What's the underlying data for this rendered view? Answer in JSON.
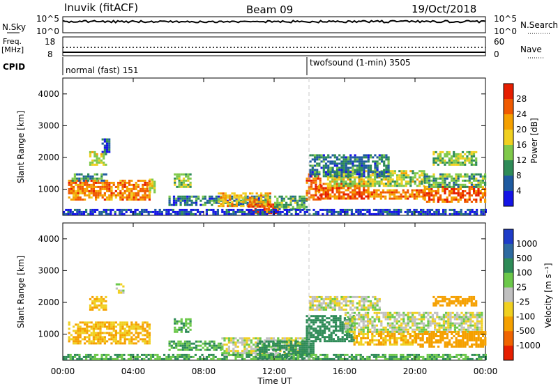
{
  "header": {
    "station": "Inuvik (fitACF)",
    "beam": "Beam 09",
    "date": "19/Oct/2018"
  },
  "top_panels": {
    "nsky_label": "N.Sky",
    "nsky_ticks": [
      "10^5",
      "10^0"
    ],
    "nsearch_label": "N.Search",
    "nsearch_ticks": [
      "10^5",
      "10^0"
    ],
    "freq_label": "Freq.",
    "freq_unit": "[MHz]",
    "freq_ticks": [
      "18",
      "8"
    ],
    "nave_label": "Nave",
    "nave_ticks": [
      "60",
      "0"
    ],
    "cpid_label": "CPID",
    "cpid_segments": [
      {
        "label": "normal (fast) 151",
        "start_hour": 0
      },
      {
        "label": "twofsound (1-min) 3505",
        "start_hour": 14
      }
    ]
  },
  "axes": {
    "x_ticks": [
      "00:00",
      "04:00",
      "08:00",
      "12:00",
      "16:00",
      "20:00",
      "00:00"
    ],
    "x_label": "Time UT",
    "y_ticks": [
      "1000",
      "2000",
      "3000",
      "4000"
    ],
    "y_label": "Slant Range [km]"
  },
  "colorbars": {
    "power": {
      "label": "Power [dB]",
      "ticks": [
        "28",
        "24",
        "20",
        "16",
        "12",
        "8",
        "4"
      ],
      "colors": [
        "#1414e6",
        "#1e5aa0",
        "#2e8b57",
        "#7fc94a",
        "#f0d020",
        "#f5a000",
        "#f05a00",
        "#e61e00"
      ]
    },
    "velocity": {
      "label": "Velocity [m s⁻¹]",
      "ticks": [
        "1000",
        "500",
        "100",
        "25",
        "-25",
        "-100",
        "-500",
        "-1000"
      ],
      "colors": [
        "#1e3cc8",
        "#2e6aa0",
        "#2e8b57",
        "#6cc84a",
        "#c0c0c0",
        "#f0d020",
        "#f5a000",
        "#f06400",
        "#e61e00"
      ]
    }
  },
  "chart_data": {
    "type": "heatmap",
    "x_range_hours": [
      0,
      24
    ],
    "y_range_km": [
      180,
      4500
    ],
    "power_blobs": [
      {
        "t0": 0.3,
        "t1": 4.9,
        "r0": 700,
        "r1": 1300,
        "v": 24
      },
      {
        "t0": 4.9,
        "t1": 5.2,
        "r0": 900,
        "r1": 1400,
        "v": 16
      },
      {
        "t0": 0.5,
        "t1": 2.5,
        "r0": 1300,
        "r1": 1500,
        "v": 10
      },
      {
        "t0": 1.5,
        "t1": 2.5,
        "r0": 1800,
        "r1": 2200,
        "v": 16
      },
      {
        "t0": 2.2,
        "t1": 2.6,
        "r0": 2200,
        "r1": 2600,
        "v": 6
      },
      {
        "t0": 6.3,
        "t1": 7.2,
        "r0": 1100,
        "r1": 1500,
        "v": 14
      },
      {
        "t0": 6.0,
        "t1": 11.8,
        "r0": 500,
        "r1": 800,
        "v": 8
      },
      {
        "t0": 8.8,
        "t1": 11.8,
        "r0": 450,
        "r1": 900,
        "v": 20
      },
      {
        "t0": 10.5,
        "t1": 12.2,
        "r0": 250,
        "r1": 550,
        "v": 28
      },
      {
        "t0": 12.0,
        "t1": 13.8,
        "r0": 400,
        "r1": 800,
        "v": 12
      },
      {
        "t0": 13.8,
        "t1": 14.6,
        "r0": 700,
        "r1": 1500,
        "v": 26
      },
      {
        "t0": 14.5,
        "t1": 17.5,
        "r0": 700,
        "r1": 1200,
        "v": 26
      },
      {
        "t0": 15.0,
        "t1": 20.5,
        "r0": 1100,
        "r1": 1600,
        "v": 16
      },
      {
        "t0": 17.5,
        "t1": 20.5,
        "r0": 700,
        "r1": 1000,
        "v": 24
      },
      {
        "t0": 14.0,
        "t1": 18.5,
        "r0": 1400,
        "r1": 2100,
        "v": 8
      },
      {
        "t0": 20.5,
        "t1": 24.0,
        "r0": 600,
        "r1": 1100,
        "v": 26
      },
      {
        "t0": 20.5,
        "t1": 24.0,
        "r0": 1100,
        "r1": 1500,
        "v": 12
      },
      {
        "t0": 21.0,
        "t1": 23.5,
        "r0": 1800,
        "r1": 2200,
        "v": 14
      },
      {
        "t0": 0.0,
        "t1": 24.0,
        "r0": 200,
        "r1": 380,
        "v": 4
      }
    ],
    "velocity_blobs": [
      {
        "t0": 0.3,
        "t1": 4.9,
        "r0": 700,
        "r1": 1400,
        "v": -100
      },
      {
        "t0": 1.5,
        "t1": 2.5,
        "r0": 1800,
        "r1": 2200,
        "v": -100
      },
      {
        "t0": 3.0,
        "t1": 3.5,
        "r0": 2300,
        "r1": 2600,
        "v": 0
      },
      {
        "t0": 6.3,
        "t1": 7.2,
        "r0": 1100,
        "r1": 1500,
        "v": 100
      },
      {
        "t0": 6.0,
        "t1": 9.0,
        "r0": 500,
        "r1": 800,
        "v": 100
      },
      {
        "t0": 9.0,
        "t1": 13.8,
        "r0": 350,
        "r1": 900,
        "v": 0
      },
      {
        "t0": 11.0,
        "t1": 14.2,
        "r0": 250,
        "r1": 800,
        "v": 300
      },
      {
        "t0": 13.8,
        "t1": 16.5,
        "r0": 800,
        "r1": 1600,
        "v": 300
      },
      {
        "t0": 16.5,
        "t1": 20.0,
        "r0": 700,
        "r1": 1100,
        "v": -100
      },
      {
        "t0": 16.0,
        "t1": 23.8,
        "r0": 1100,
        "r1": 1700,
        "v": 0
      },
      {
        "t0": 20.0,
        "t1": 24.0,
        "r0": 600,
        "r1": 1100,
        "v": -300
      },
      {
        "t0": 14.0,
        "t1": 18.0,
        "r0": 1800,
        "r1": 2200,
        "v": 0
      },
      {
        "t0": 21.0,
        "t1": 23.5,
        "r0": 1900,
        "r1": 2200,
        "v": -300
      },
      {
        "t0": 0.0,
        "t1": 24.0,
        "r0": 200,
        "r1": 380,
        "v": 100
      }
    ]
  }
}
